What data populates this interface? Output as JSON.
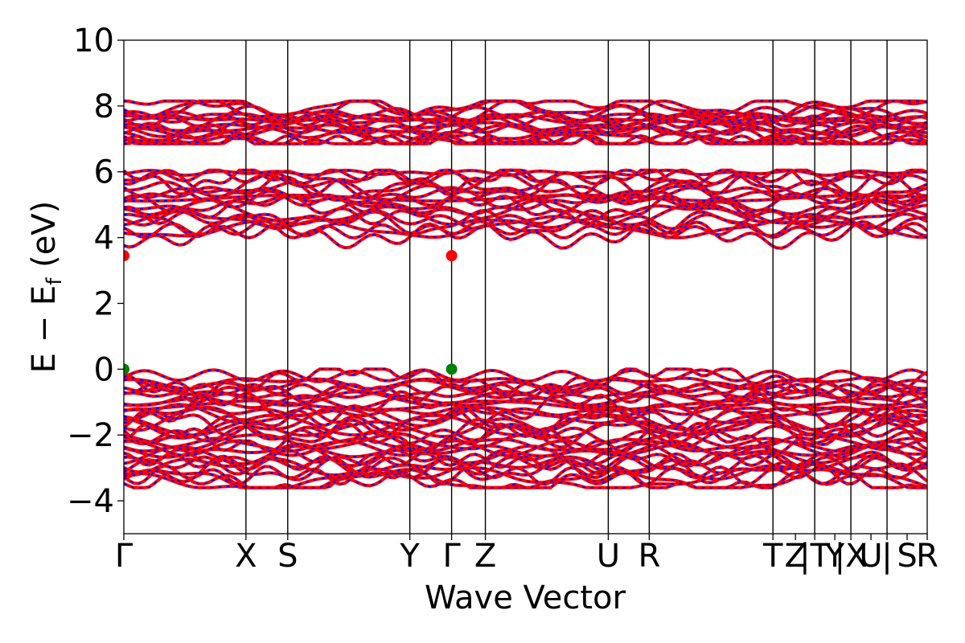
{
  "chart_data": {
    "type": "line",
    "title": "",
    "xlabel": "Wave Vector",
    "ylabel": "E − E",
    "ylabel_sub": "f",
    "ylabel_unit": " (eV)",
    "ylim": [
      -5,
      10
    ],
    "yticks": [
      10,
      8,
      6,
      4,
      2,
      0,
      -2,
      -4
    ],
    "ytick_labels": [
      "10",
      "8",
      "6",
      "4",
      "2",
      "0",
      "−2",
      "−4"
    ],
    "kpath_labels": [
      "Γ",
      "X",
      "S",
      "Y",
      "Γ",
      "Z",
      "U",
      "R",
      "T",
      "Z",
      "|T",
      "Y",
      "|X",
      "U",
      "|",
      "S",
      "R"
    ],
    "kpoints": [
      {
        "label": "Γ",
        "k": 0.0,
        "line": false
      },
      {
        "label": "X",
        "k": 0.152,
        "line": true
      },
      {
        "label": "S",
        "k": 0.204,
        "line": true
      },
      {
        "label": "Y",
        "k": 0.356,
        "line": true
      },
      {
        "label": "Γ",
        "k": 0.408,
        "line": true
      },
      {
        "label": "Z",
        "k": 0.45,
        "line": true
      },
      {
        "label": "U",
        "k": 0.603,
        "line": true
      },
      {
        "label": "R",
        "k": 0.654,
        "line": true
      },
      {
        "label": "T",
        "k": 0.808,
        "line": true
      },
      {
        "label": "Z",
        "k": 0.836,
        "line": false
      },
      {
        "label": "|T",
        "k": 0.86,
        "line": true
      },
      {
        "label": "Y",
        "k": 0.885,
        "line": false
      },
      {
        "label": "|X",
        "k": 0.905,
        "line": true
      },
      {
        "label": "U",
        "k": 0.93,
        "line": false
      },
      {
        "label": "|",
        "k": 0.95,
        "line": true
      },
      {
        "label": "S",
        "k": 0.975,
        "line": false
      },
      {
        "label": "R",
        "k": 1.0,
        "line": false
      }
    ],
    "series": [
      {
        "color": "#ff0000",
        "style": "solid"
      },
      {
        "color": "#0000ff",
        "style": "dashed"
      }
    ],
    "bands": {
      "conduction": {
        "range": [
          3.45,
          8.15
        ],
        "gap_region": [
          6.0,
          6.9
        ]
      },
      "valence": {
        "range": [
          -3.6,
          0.0
        ]
      }
    },
    "cbm": {
      "value": 3.45,
      "at": [
        "Γ",
        "Γ"
      ],
      "color": "#ff0000"
    },
    "vbm": {
      "value": 0.0,
      "at": [
        "Γ",
        "Γ"
      ],
      "color": "#008000"
    },
    "grid": false
  }
}
